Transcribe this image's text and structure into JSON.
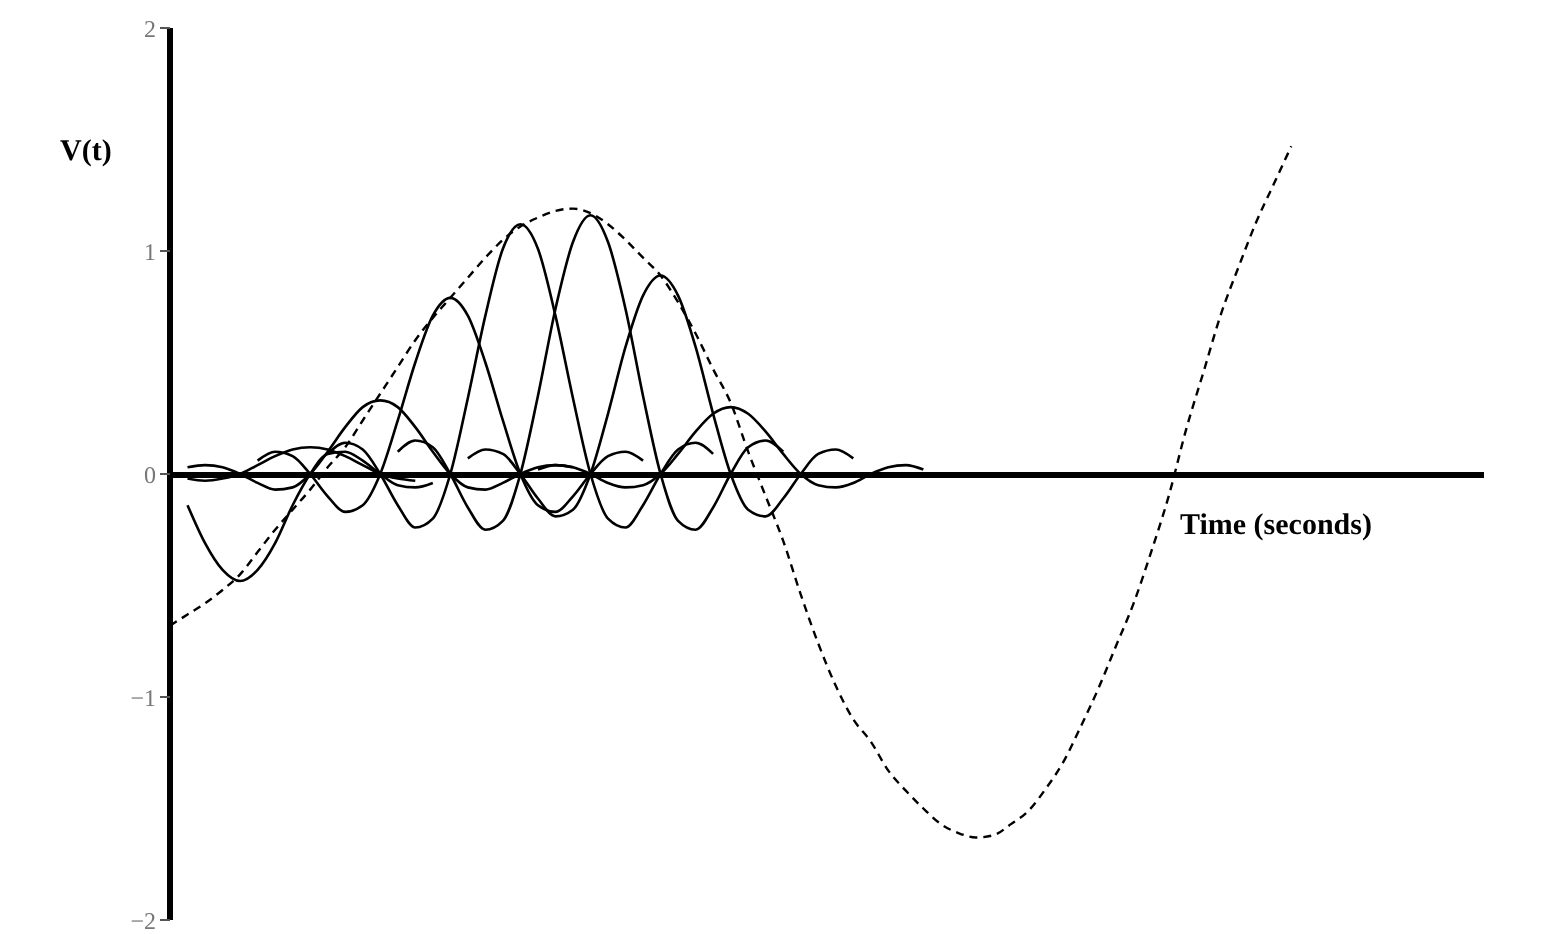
{
  "chart_data": {
    "type": "line",
    "xlabel": "Time (seconds)",
    "ylabel": "V(t)",
    "categories": [
      null,
      null,
      null,
      null,
      null,
      null,
      null,
      null,
      null,
      null,
      null,
      null,
      null,
      null,
      null,
      null,
      null,
      null,
      null,
      null,
      null,
      null,
      null,
      null,
      null,
      null,
      null,
      null,
      null,
      null,
      null,
      null,
      null,
      null,
      null,
      null,
      null,
      null,
      null,
      null,
      null,
      null,
      null,
      null,
      null,
      null,
      null,
      null,
      null,
      null,
      null,
      null,
      null,
      null,
      null,
      null,
      null,
      null,
      null,
      null,
      null,
      null,
      null,
      null,
      null,
      null,
      null,
      null,
      null,
      null,
      null,
      null,
      null,
      null,
      null,
      null
    ],
    "ylim": [
      -2,
      2
    ],
    "yticks": [
      -2,
      -1,
      0,
      1,
      2
    ],
    "marker": "none",
    "line_style": "solid",
    "series": [
      {
        "color": "#000000",
        "values": [
          null,
          -0.14,
          -0.31,
          -0.43,
          -0.48,
          -0.43,
          -0.31,
          -0.14,
          0,
          0.09,
          0.1,
          0.06,
          0,
          -0.05,
          -0.06,
          -0.04,
          null,
          null,
          null,
          null,
          null,
          null,
          null,
          null,
          null,
          null,
          null,
          null,
          null,
          null,
          null,
          null,
          null,
          null,
          null,
          null,
          null,
          null,
          null,
          null,
          null,
          null,
          null,
          null,
          null,
          null,
          null,
          null,
          null,
          null,
          null,
          null,
          null,
          null,
          null,
          null,
          null,
          null,
          null,
          null,
          null,
          null,
          null,
          null,
          null,
          null,
          null,
          null,
          null,
          null,
          null,
          null,
          null,
          null,
          null,
          null
        ]
      },
      {
        "color": "#000000",
        "values": [
          null,
          -0.02,
          -0.03,
          -0.02,
          0,
          0.04,
          0.08,
          0.11,
          0.12,
          0.11,
          0.08,
          0.04,
          0,
          -0.02,
          -0.03,
          null,
          null,
          null,
          null,
          null,
          null,
          null,
          null,
          null,
          null,
          null,
          null,
          null,
          null,
          null,
          null,
          null,
          null,
          null,
          null,
          null,
          null,
          null,
          null,
          null,
          null,
          null,
          null,
          null,
          null,
          null,
          null,
          null,
          null,
          null,
          null,
          null,
          null,
          null,
          null,
          null,
          null,
          null,
          null,
          null,
          null,
          null,
          null,
          null,
          null,
          null,
          null,
          null,
          null,
          null,
          null,
          null,
          null,
          null,
          null,
          null
        ]
      },
      {
        "color": "#000000",
        "values": [
          null,
          0.03,
          0.04,
          0.03,
          0,
          -0.04,
          -0.07,
          -0.06,
          0,
          0.1,
          0.21,
          0.3,
          0.33,
          0.3,
          0.21,
          0.1,
          0,
          -0.06,
          -0.07,
          -0.04,
          0,
          0.03,
          0.04,
          0.03,
          null,
          null,
          null,
          null,
          null,
          null,
          null,
          null,
          null,
          null,
          null,
          null,
          null,
          null,
          null,
          null,
          null,
          null,
          null,
          null,
          null,
          null,
          null,
          null,
          null,
          null,
          null,
          null,
          null,
          null,
          null,
          null,
          null,
          null,
          null,
          null,
          null,
          null,
          null,
          null,
          null,
          null,
          null,
          null,
          null,
          null,
          null,
          null,
          null,
          null,
          null,
          null
        ]
      },
      {
        "color": "#000000",
        "values": [
          null,
          null,
          null,
          null,
          null,
          0.06,
          0.1,
          0.08,
          0,
          -0.1,
          -0.17,
          -0.14,
          0,
          0.24,
          0.5,
          0.71,
          0.79,
          0.71,
          0.5,
          0.24,
          0,
          -0.14,
          -0.17,
          -0.1,
          0,
          0.08,
          0.1,
          0.06,
          null,
          null,
          null,
          null,
          null,
          null,
          null,
          null,
          null,
          null,
          null,
          null,
          null,
          null,
          null,
          null,
          null,
          null,
          null,
          null,
          null,
          null,
          null,
          null,
          null,
          null,
          null,
          null,
          null,
          null,
          null,
          null,
          null,
          null,
          null,
          null,
          null,
          null,
          null,
          null,
          null,
          null,
          null,
          null,
          null,
          null,
          null,
          null
        ]
      },
      {
        "color": "#000000",
        "values": [
          null,
          null,
          null,
          null,
          null,
          null,
          null,
          null,
          null,
          0.09,
          0.14,
          0.11,
          0,
          -0.14,
          -0.24,
          -0.2,
          0,
          0.34,
          0.71,
          1.01,
          1.12,
          1.01,
          0.71,
          0.34,
          0,
          -0.2,
          -0.24,
          -0.14,
          0,
          0.11,
          0.14,
          0.09,
          null,
          null,
          null,
          null,
          null,
          null,
          null,
          null,
          null,
          null,
          null,
          null,
          null,
          null,
          null,
          null,
          null,
          null,
          null,
          null,
          null,
          null,
          null,
          null,
          null,
          null,
          null,
          null,
          null,
          null,
          null,
          null,
          null,
          null,
          null,
          null,
          null,
          null,
          null,
          null,
          null,
          null,
          null,
          null
        ]
      },
      {
        "color": "#000000",
        "values": [
          null,
          null,
          null,
          null,
          null,
          null,
          null,
          null,
          null,
          null,
          null,
          null,
          null,
          0.1,
          0.15,
          0.12,
          0,
          -0.15,
          -0.25,
          -0.21,
          0,
          0.35,
          0.74,
          1.04,
          1.16,
          1.04,
          0.74,
          0.35,
          0,
          -0.21,
          -0.25,
          -0.15,
          0,
          0.12,
          0.15,
          0.1,
          null,
          null,
          null,
          null,
          null,
          null,
          null,
          null,
          null,
          null,
          null,
          null,
          null,
          null,
          null,
          null,
          null,
          null,
          null,
          null,
          null,
          null,
          null,
          null,
          null,
          null,
          null,
          null,
          null,
          null,
          null,
          null,
          null,
          null,
          null,
          null,
          null,
          null,
          null,
          null
        ]
      },
      {
        "color": "#000000",
        "values": [
          null,
          null,
          null,
          null,
          null,
          null,
          null,
          null,
          null,
          null,
          null,
          null,
          null,
          null,
          null,
          null,
          null,
          0.07,
          0.11,
          0.09,
          0,
          -0.11,
          -0.19,
          -0.16,
          0,
          0.27,
          0.57,
          0.8,
          0.89,
          0.8,
          0.57,
          0.27,
          0,
          -0.16,
          -0.19,
          -0.11,
          0,
          0.09,
          0.11,
          0.07,
          null,
          null,
          null,
          null,
          null,
          null,
          null,
          null,
          null,
          null,
          null,
          null,
          null,
          null,
          null,
          null,
          null,
          null,
          null,
          null,
          null,
          null,
          null,
          null,
          null,
          null,
          null,
          null,
          null,
          null,
          null,
          null,
          null,
          null,
          null,
          null
        ]
      },
      {
        "color": "#000000",
        "values": [
          null,
          null,
          null,
          null,
          null,
          null,
          null,
          null,
          null,
          null,
          null,
          null,
          null,
          null,
          null,
          null,
          null,
          null,
          null,
          null,
          null,
          0.02,
          0.04,
          0.03,
          0,
          -0.04,
          -0.06,
          -0.05,
          0,
          0.09,
          0.19,
          0.27,
          0.3,
          0.27,
          0.19,
          0.09,
          0,
          -0.05,
          -0.06,
          -0.04,
          0,
          0.03,
          0.04,
          0.02,
          null,
          null,
          null,
          null,
          null,
          null,
          null,
          null,
          null,
          null,
          null,
          null,
          null,
          null,
          null,
          null,
          null,
          null,
          null,
          null,
          null,
          null,
          null,
          null,
          null,
          null,
          null,
          null,
          null,
          null,
          null,
          null
        ]
      },
      {
        "color": "#000000",
        "line_style": "dashed",
        "values": [
          -0.68,
          -0.63,
          -0.58,
          -0.52,
          -0.45,
          -0.35,
          -0.25,
          -0.16,
          -0.07,
          0.03,
          0.12,
          0.24,
          0.36,
          0.48,
          0.6,
          0.7,
          0.79,
          0.88,
          0.97,
          1.05,
          1.11,
          1.15,
          1.18,
          1.19,
          1.17,
          1.12,
          1.05,
          0.97,
          0.89,
          0.77,
          0.63,
          0.47,
          0.32,
          0.1,
          -0.1,
          -0.3,
          -0.54,
          -0.76,
          -0.95,
          -1.1,
          -1.2,
          -1.33,
          -1.42,
          -1.5,
          -1.57,
          -1.61,
          -1.63,
          -1.62,
          -1.57,
          -1.51,
          -1.41,
          -1.29,
          -1.13,
          -0.96,
          -0.77,
          -0.58,
          -0.35,
          -0.1,
          0.2,
          0.46,
          0.72,
          0.93,
          1.13,
          1.3,
          1.47,
          null,
          null,
          null,
          null,
          null,
          null,
          null,
          null,
          null,
          null,
          null
        ]
      }
    ]
  }
}
